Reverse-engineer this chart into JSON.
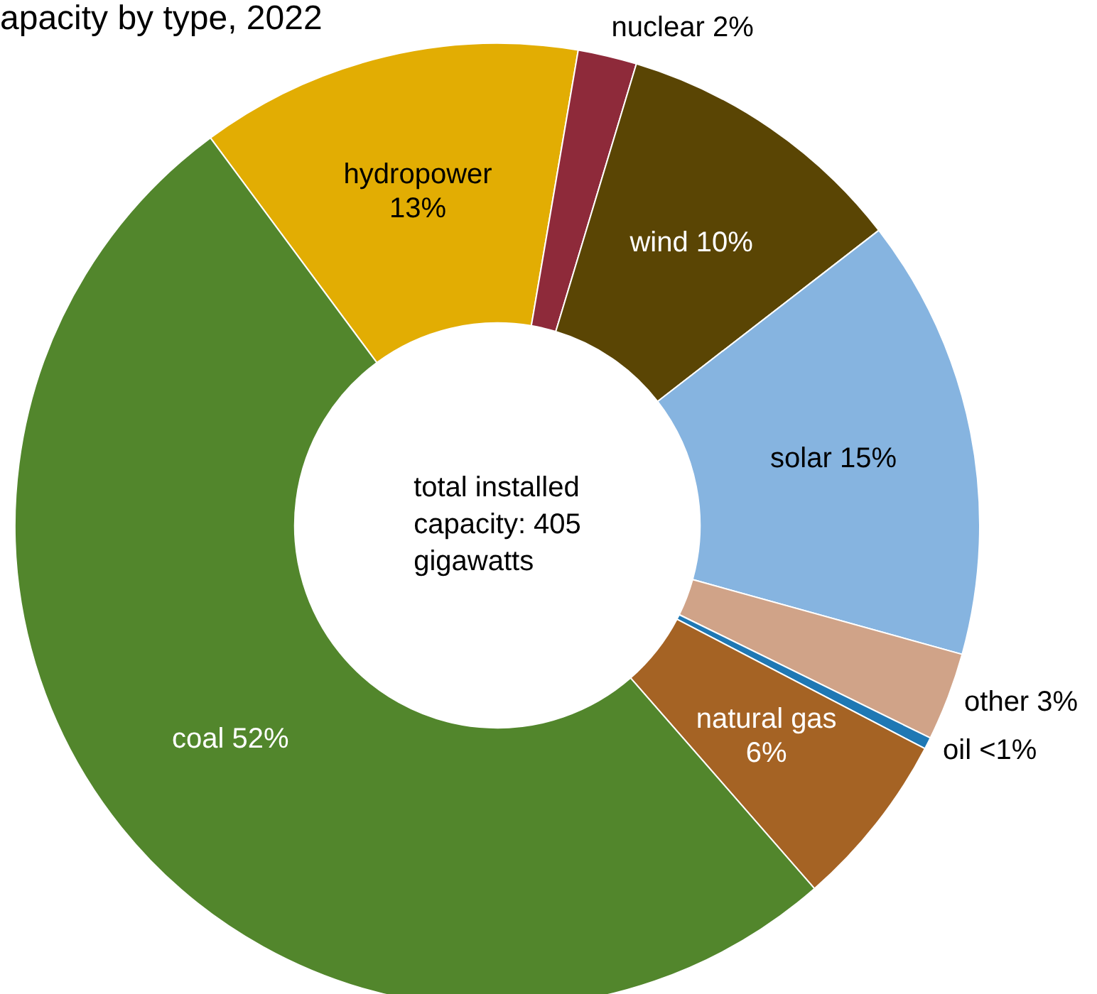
{
  "chart_data": {
    "type": "donut",
    "title": "apacity by type, 2022",
    "categories": [
      "hydropower",
      "nuclear",
      "wind",
      "solar",
      "other",
      "oil",
      "natural gas",
      "coal"
    ],
    "values": [
      13,
      2,
      10,
      15,
      3,
      0.4,
      6,
      52
    ],
    "value_labels": [
      "13%",
      "2%",
      "10%",
      "15%",
      "3%",
      "<1%",
      "6%",
      "52%"
    ],
    "colors": [
      "#e2ad03",
      "#8e2a3a",
      "#5a4504",
      "#86b4e0",
      "#d0a388",
      "#1f78b4",
      "#a56324",
      "#52862c"
    ],
    "annotations": [
      "total installed capacity: 405 gigawatts"
    ],
    "legend": false
  }
}
